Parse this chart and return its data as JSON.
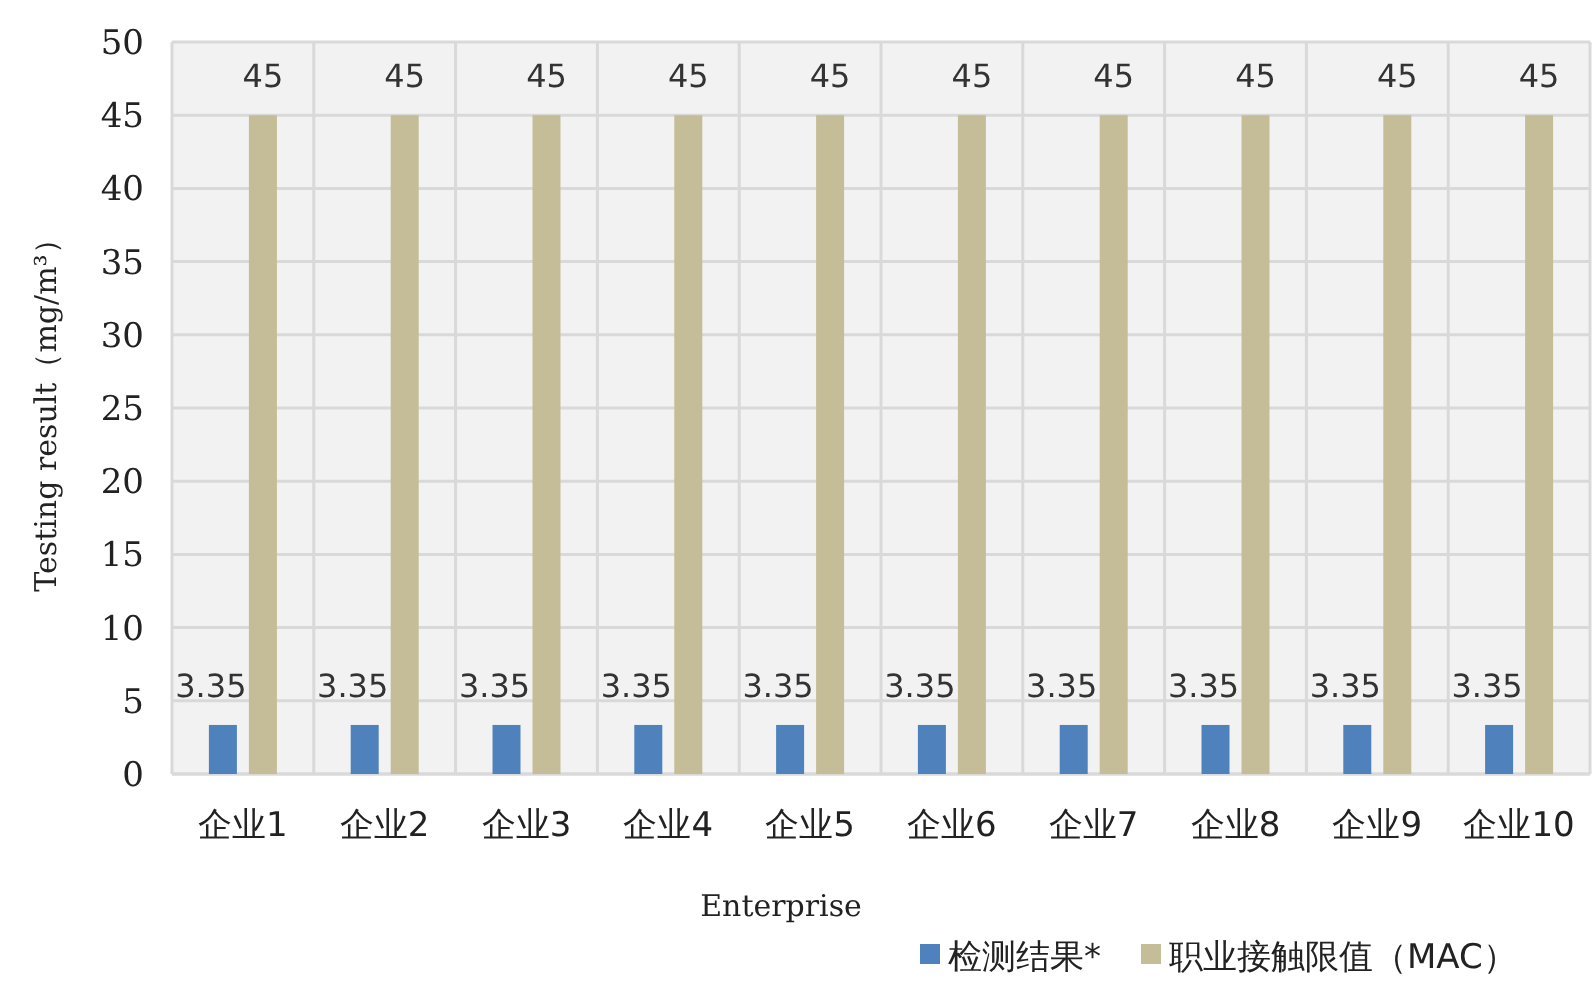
{
  "chart_data": {
    "type": "bar",
    "xlabel": "Enterprise",
    "ylabel": "Testing result（mg/m³）",
    "categories": [
      "企业1",
      "企业2",
      "企业3",
      "企业4",
      "企业5",
      "企业6",
      "企业7",
      "企业8",
      "企业9",
      "企业10"
    ],
    "series": [
      {
        "name": "检测结果*",
        "color": "#4f81bd",
        "values": [
          3.35,
          3.35,
          3.35,
          3.35,
          3.35,
          3.35,
          3.35,
          3.35,
          3.35,
          3.35
        ]
      },
      {
        "name": "职业接触限值（MAC）",
        "color": "#c4bd97",
        "values": [
          45,
          45,
          45,
          45,
          45,
          45,
          45,
          45,
          45,
          45
        ]
      }
    ],
    "ylim": [
      0,
      50
    ],
    "yticks": [
      0,
      5,
      10,
      15,
      20,
      25,
      30,
      35,
      40,
      45,
      50
    ],
    "grid": true,
    "legend": "bottom",
    "data_labels": true
  }
}
